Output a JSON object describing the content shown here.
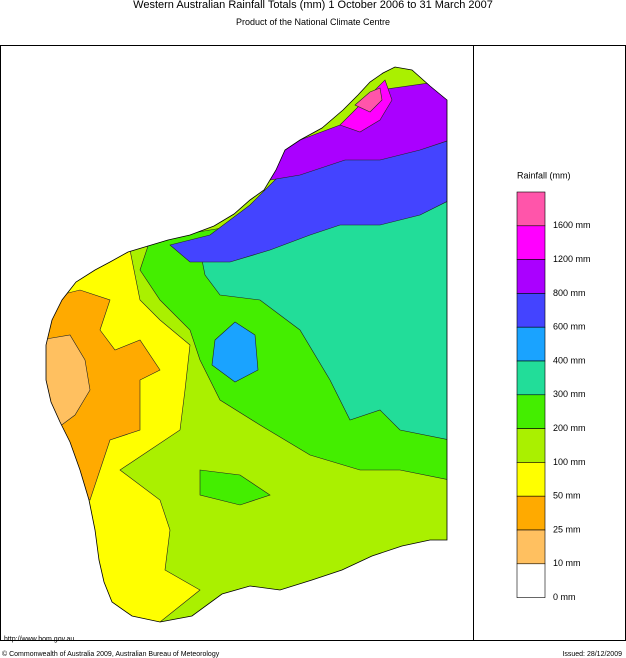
{
  "header": {
    "title": "Western Australian Rainfall Totals (mm) 1 October 2006 to 31 March 2007",
    "subtitle": "Product of the National Climate Centre"
  },
  "legend": {
    "title": "Rainfall (mm)",
    "items": [
      {
        "label": "1600 mm",
        "color": "#ff55aa"
      },
      {
        "label": "1200 mm",
        "color": "#ff00ff"
      },
      {
        "label": "800 mm",
        "color": "#aa00ff"
      },
      {
        "label": "600 mm",
        "color": "#4444ff"
      },
      {
        "label": "400 mm",
        "color": "#1aa3ff"
      },
      {
        "label": "300 mm",
        "color": "#22dd99"
      },
      {
        "label": "200 mm",
        "color": "#44ee00"
      },
      {
        "label": "100 mm",
        "color": "#aaf000"
      },
      {
        "label": "50 mm",
        "color": "#ffff00"
      },
      {
        "label": "25 mm",
        "color": "#ffaa00"
      },
      {
        "label": "10 mm",
        "color": "#ffc060"
      },
      {
        "label": "0 mm",
        "color": "#ffffff"
      }
    ]
  },
  "footer": {
    "url": "http://www.bom.gov.au",
    "copyright": "© Commonwealth of Australia 2009, Australian Bureau of Meteorology",
    "issued": "Issued: 28/12/2009"
  }
}
